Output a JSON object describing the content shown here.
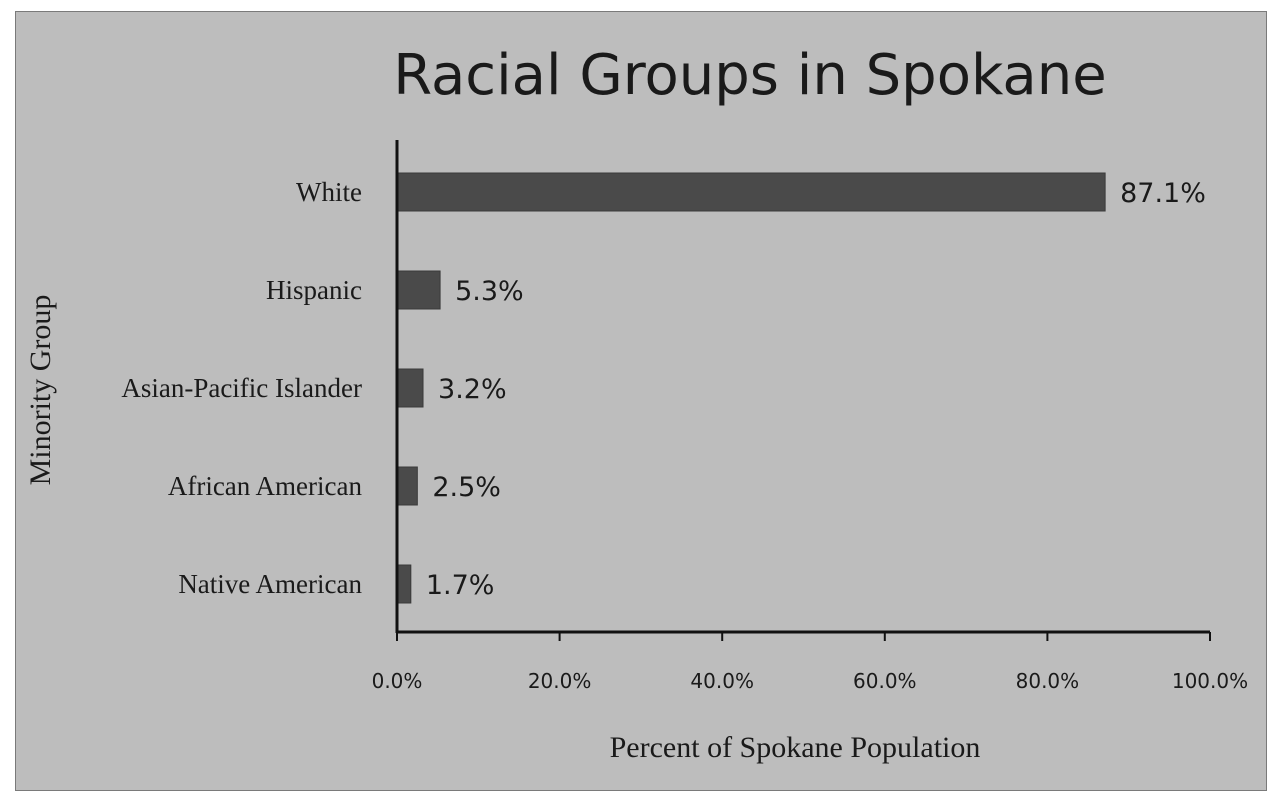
{
  "chart_data": {
    "type": "bar",
    "orientation": "horizontal",
    "title": "Racial Groups in Spokane",
    "xlabel": "Percent of Spokane Population",
    "ylabel": "Minority Group",
    "categories": [
      "White",
      "Hispanic",
      "Asian-Pacific Islander",
      "African American",
      "Native American"
    ],
    "values": [
      87.1,
      5.3,
      3.2,
      2.5,
      1.7
    ],
    "data_labels": [
      "87.1%",
      "5.3%",
      "3.2%",
      "2.5%",
      "1.7%"
    ],
    "xlim": [
      0,
      100
    ],
    "x_ticks": [
      0,
      20,
      40,
      60,
      80,
      100
    ],
    "x_tick_labels": [
      "0.0%",
      "20.0%",
      "40.0%",
      "60.0%",
      "80.0%",
      "100.0%"
    ],
    "grid": false,
    "legend": "none",
    "bar_color": "#4a4a4a",
    "background_color": "#bdbdbd"
  }
}
